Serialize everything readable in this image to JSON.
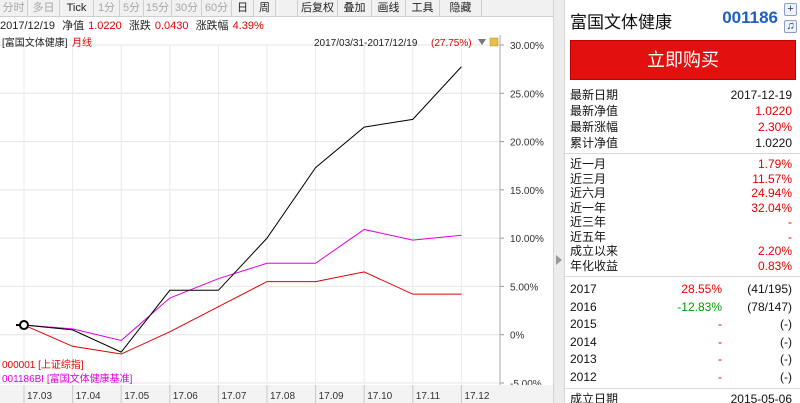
{
  "toolbar": {
    "items": [
      {
        "label": "分时",
        "disabled": true
      },
      {
        "label": "多日",
        "disabled": true
      },
      {
        "label": "Tick",
        "disabled": false
      },
      {
        "label": "1分",
        "disabled": true
      },
      {
        "label": "5分",
        "disabled": true
      },
      {
        "label": "15分",
        "disabled": true
      },
      {
        "label": "30分",
        "disabled": true
      },
      {
        "label": "60分",
        "disabled": true
      },
      {
        "label": "日",
        "disabled": false
      },
      {
        "label": "周",
        "disabled": false
      },
      {
        "label": "",
        "disabled": false
      },
      {
        "label": "后复权",
        "disabled": false
      },
      {
        "label": "叠加",
        "disabled": false
      },
      {
        "label": "画线",
        "disabled": false
      },
      {
        "label": "工具",
        "disabled": false
      },
      {
        "label": "隐藏",
        "disabled": false
      }
    ]
  },
  "info": {
    "date": "2017/12/19",
    "nav_label": "净值",
    "nav_value": "1.0220",
    "change_label": "涨跌",
    "change_value": "0.0430",
    "change_pct_label": "涨跌幅",
    "change_pct_value": "4.39%"
  },
  "chart": {
    "legend_name": "富国文体健康",
    "legend_period": "月线",
    "range_text": "2017/03/31-2017/12/19",
    "range_pct": "(27.75%)",
    "bottom_legend_1": "000001 [上证综指]",
    "bottom_legend_2": "001186BI [富国文体健康基准]"
  },
  "chart_data": {
    "type": "line",
    "x": [
      "17.03",
      "17.04",
      "17.05",
      "17.06",
      "17.07",
      "17.08",
      "17.09",
      "17.10",
      "17.11",
      "17.12"
    ],
    "ylim": [
      -5,
      30
    ],
    "yticks": [
      "30.00%",
      "25.00%",
      "20.00%",
      "15.00%",
      "10.00%",
      "5.00%",
      "0%",
      "-5.00%"
    ],
    "ytick_values": [
      30,
      25,
      20,
      15,
      10,
      5,
      0,
      -5
    ],
    "series": [
      {
        "name": "富国文体健康",
        "color": "#000000",
        "values": [
          1.0,
          0.5,
          -1.8,
          4.6,
          4.6,
          10.0,
          17.3,
          21.5,
          22.3,
          27.75
        ]
      },
      {
        "name": "001186BI [富国文体健康基准]",
        "color": "#e000e0",
        "values": [
          1.0,
          0.6,
          -0.6,
          3.8,
          5.8,
          7.4,
          7.4,
          10.9,
          9.8,
          10.3
        ]
      },
      {
        "name": "000001 [上证综指]",
        "color": "#e00000",
        "values": [
          1.0,
          -1.2,
          -2.0,
          0.3,
          2.9,
          5.5,
          5.5,
          6.5,
          4.2,
          4.2
        ]
      }
    ],
    "grid": true,
    "legend": "top-left"
  },
  "fund": {
    "name": "富国文体健康",
    "code": "001186",
    "buy_label": "立即购买",
    "stats": [
      {
        "label": "最新日期",
        "value": "2017-12-19",
        "color": "#111111"
      },
      {
        "label": "最新净值",
        "value": "1.0220",
        "color": "#e60000"
      },
      {
        "label": "最新涨幅",
        "value": "2.30%",
        "color": "#e60000"
      },
      {
        "label": "累计净值",
        "value": "1.0220",
        "color": "#111111"
      }
    ],
    "returns": [
      {
        "label": "近一月",
        "value": "1.79%",
        "color": "#e60000"
      },
      {
        "label": "近三月",
        "value": "11.57%",
        "color": "#e60000"
      },
      {
        "label": "近六月",
        "value": "24.94%",
        "color": "#e60000"
      },
      {
        "label": "近一年",
        "value": "32.04%",
        "color": "#e60000"
      },
      {
        "label": "近三年",
        "value": "-",
        "color": "#e60000"
      },
      {
        "label": "近五年",
        "value": "-",
        "color": "#e60000"
      },
      {
        "label": "成立以来",
        "value": "2.20%",
        "color": "#e60000"
      },
      {
        "label": "年化收益",
        "value": "0.83%",
        "color": "#e60000"
      }
    ],
    "yearly": [
      {
        "year": "2017",
        "pct": "28.55%",
        "rank": "(41/195)",
        "color": "#e60000"
      },
      {
        "year": "2016",
        "pct": "-12.83%",
        "rank": "(78/147)",
        "color": "#009900"
      },
      {
        "year": "2015",
        "pct": "-",
        "rank": "(-)",
        "color": "#e60000"
      },
      {
        "year": "2014",
        "pct": "-",
        "rank": "(-)",
        "color": "#e60000"
      },
      {
        "year": "2013",
        "pct": "-",
        "rank": "(-)",
        "color": "#e60000"
      },
      {
        "year": "2012",
        "pct": "-",
        "rank": "(-)",
        "color": "#e60000"
      }
    ],
    "inception_label": "成立日期",
    "inception_value": "2015-05-06"
  }
}
